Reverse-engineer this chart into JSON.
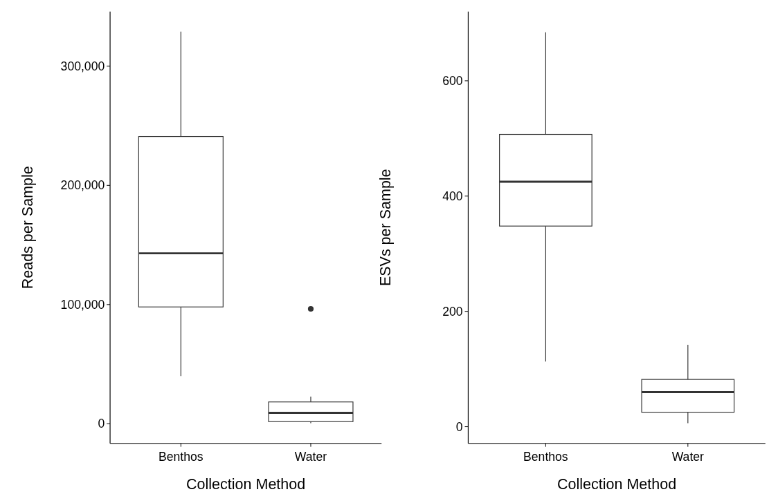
{
  "chart_data": [
    {
      "type": "box",
      "xlabel": "Collection Method",
      "ylabel": "Reads per Sample",
      "categories": [
        "Benthos",
        "Water"
      ],
      "color": "#333333",
      "boxes": [
        {
          "low": 40000,
          "q1": 98000,
          "median": 143000,
          "q3": 241000,
          "high": 329000
        },
        {
          "low": 500,
          "q1": 1800,
          "median": 9200,
          "q3": 18300,
          "high": 22800,
          "outliers": [
            96400
          ]
        }
      ],
      "ylim": [
        -16500,
        345800
      ],
      "yticks": [
        {
          "value": 0,
          "label": "0"
        },
        {
          "value": 100000,
          "label": "100,000"
        },
        {
          "value": 200000,
          "label": "200,000"
        },
        {
          "value": 300000,
          "label": "300,000"
        }
      ],
      "grid": false
    },
    {
      "type": "box",
      "xlabel": "Collection Method",
      "ylabel": "ESVs per Sample",
      "categories": [
        "Benthos",
        "Water"
      ],
      "color": "#333333",
      "boxes": [
        {
          "low": 113,
          "q1": 348,
          "median": 425,
          "q3": 507,
          "high": 684
        },
        {
          "low": 6,
          "q1": 25,
          "median": 60,
          "q3": 82,
          "high": 142
        }
      ],
      "ylim": [
        -29,
        720
      ],
      "yticks": [
        0,
        200,
        400,
        600
      ],
      "grid": false
    }
  ]
}
